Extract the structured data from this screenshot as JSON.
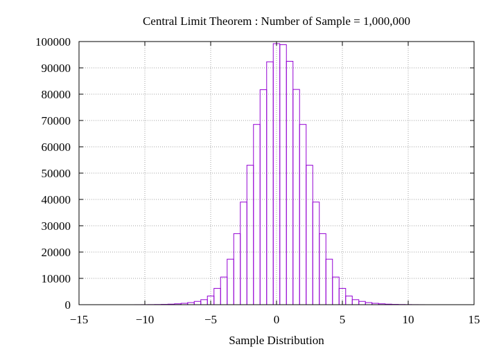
{
  "chart_data": {
    "type": "bar",
    "title": "Central Limit Theorem : Number of Sample = 1,000,000",
    "xlabel": "Sample Distribution",
    "ylabel": "",
    "xlim": [
      -15,
      15
    ],
    "ylim": [
      0,
      100000
    ],
    "x_ticks": [
      -15,
      -10,
      -5,
      0,
      5,
      10,
      15
    ],
    "x_tick_labels": [
      "−15",
      "−10",
      "−5",
      "0",
      "5",
      "10",
      "15"
    ],
    "y_ticks": [
      0,
      10000,
      20000,
      30000,
      40000,
      50000,
      60000,
      70000,
      80000,
      90000,
      100000
    ],
    "y_tick_labels": [
      "0",
      "10000",
      "20000",
      "30000",
      "40000",
      "50000",
      "60000",
      "70000",
      "80000",
      "90000",
      "100000"
    ],
    "grid": true,
    "bar_color": "#9400d3",
    "bin_width": 0.5,
    "bins": [
      {
        "x": -10.5,
        "y": 10
      },
      {
        "x": -10,
        "y": 20
      },
      {
        "x": -9.5,
        "y": 40
      },
      {
        "x": -9,
        "y": 70
      },
      {
        "x": -8.5,
        "y": 120
      },
      {
        "x": -8,
        "y": 200
      },
      {
        "x": -7.5,
        "y": 330
      },
      {
        "x": -7,
        "y": 520
      },
      {
        "x": -6.5,
        "y": 800
      },
      {
        "x": -6,
        "y": 1250
      },
      {
        "x": -5.5,
        "y": 1900
      },
      {
        "x": -5,
        "y": 3300
      },
      {
        "x": -4.5,
        "y": 6200
      },
      {
        "x": -4,
        "y": 10500
      },
      {
        "x": -3.5,
        "y": 17300
      },
      {
        "x": -3,
        "y": 27000
      },
      {
        "x": -2.5,
        "y": 39000
      },
      {
        "x": -2,
        "y": 53000
      },
      {
        "x": -1.5,
        "y": 68500
      },
      {
        "x": -1,
        "y": 81700
      },
      {
        "x": -0.5,
        "y": 92300
      },
      {
        "x": 0,
        "y": 99200
      },
      {
        "x": 0.5,
        "y": 98800
      },
      {
        "x": 1,
        "y": 92500
      },
      {
        "x": 1.5,
        "y": 81800
      },
      {
        "x": 2,
        "y": 68500
      },
      {
        "x": 2.5,
        "y": 53000
      },
      {
        "x": 3,
        "y": 39000
      },
      {
        "x": 3.5,
        "y": 27000
      },
      {
        "x": 4,
        "y": 17300
      },
      {
        "x": 4.5,
        "y": 10500
      },
      {
        "x": 5,
        "y": 6200
      },
      {
        "x": 5.5,
        "y": 3300
      },
      {
        "x": 6,
        "y": 1900
      },
      {
        "x": 6.5,
        "y": 1250
      },
      {
        "x": 7,
        "y": 800
      },
      {
        "x": 7.5,
        "y": 520
      },
      {
        "x": 8,
        "y": 330
      },
      {
        "x": 8.5,
        "y": 200
      },
      {
        "x": 9,
        "y": 120
      },
      {
        "x": 9.5,
        "y": 70
      },
      {
        "x": 10,
        "y": 40
      },
      {
        "x": 10.5,
        "y": 20
      },
      {
        "x": 11,
        "y": 10
      }
    ]
  }
}
